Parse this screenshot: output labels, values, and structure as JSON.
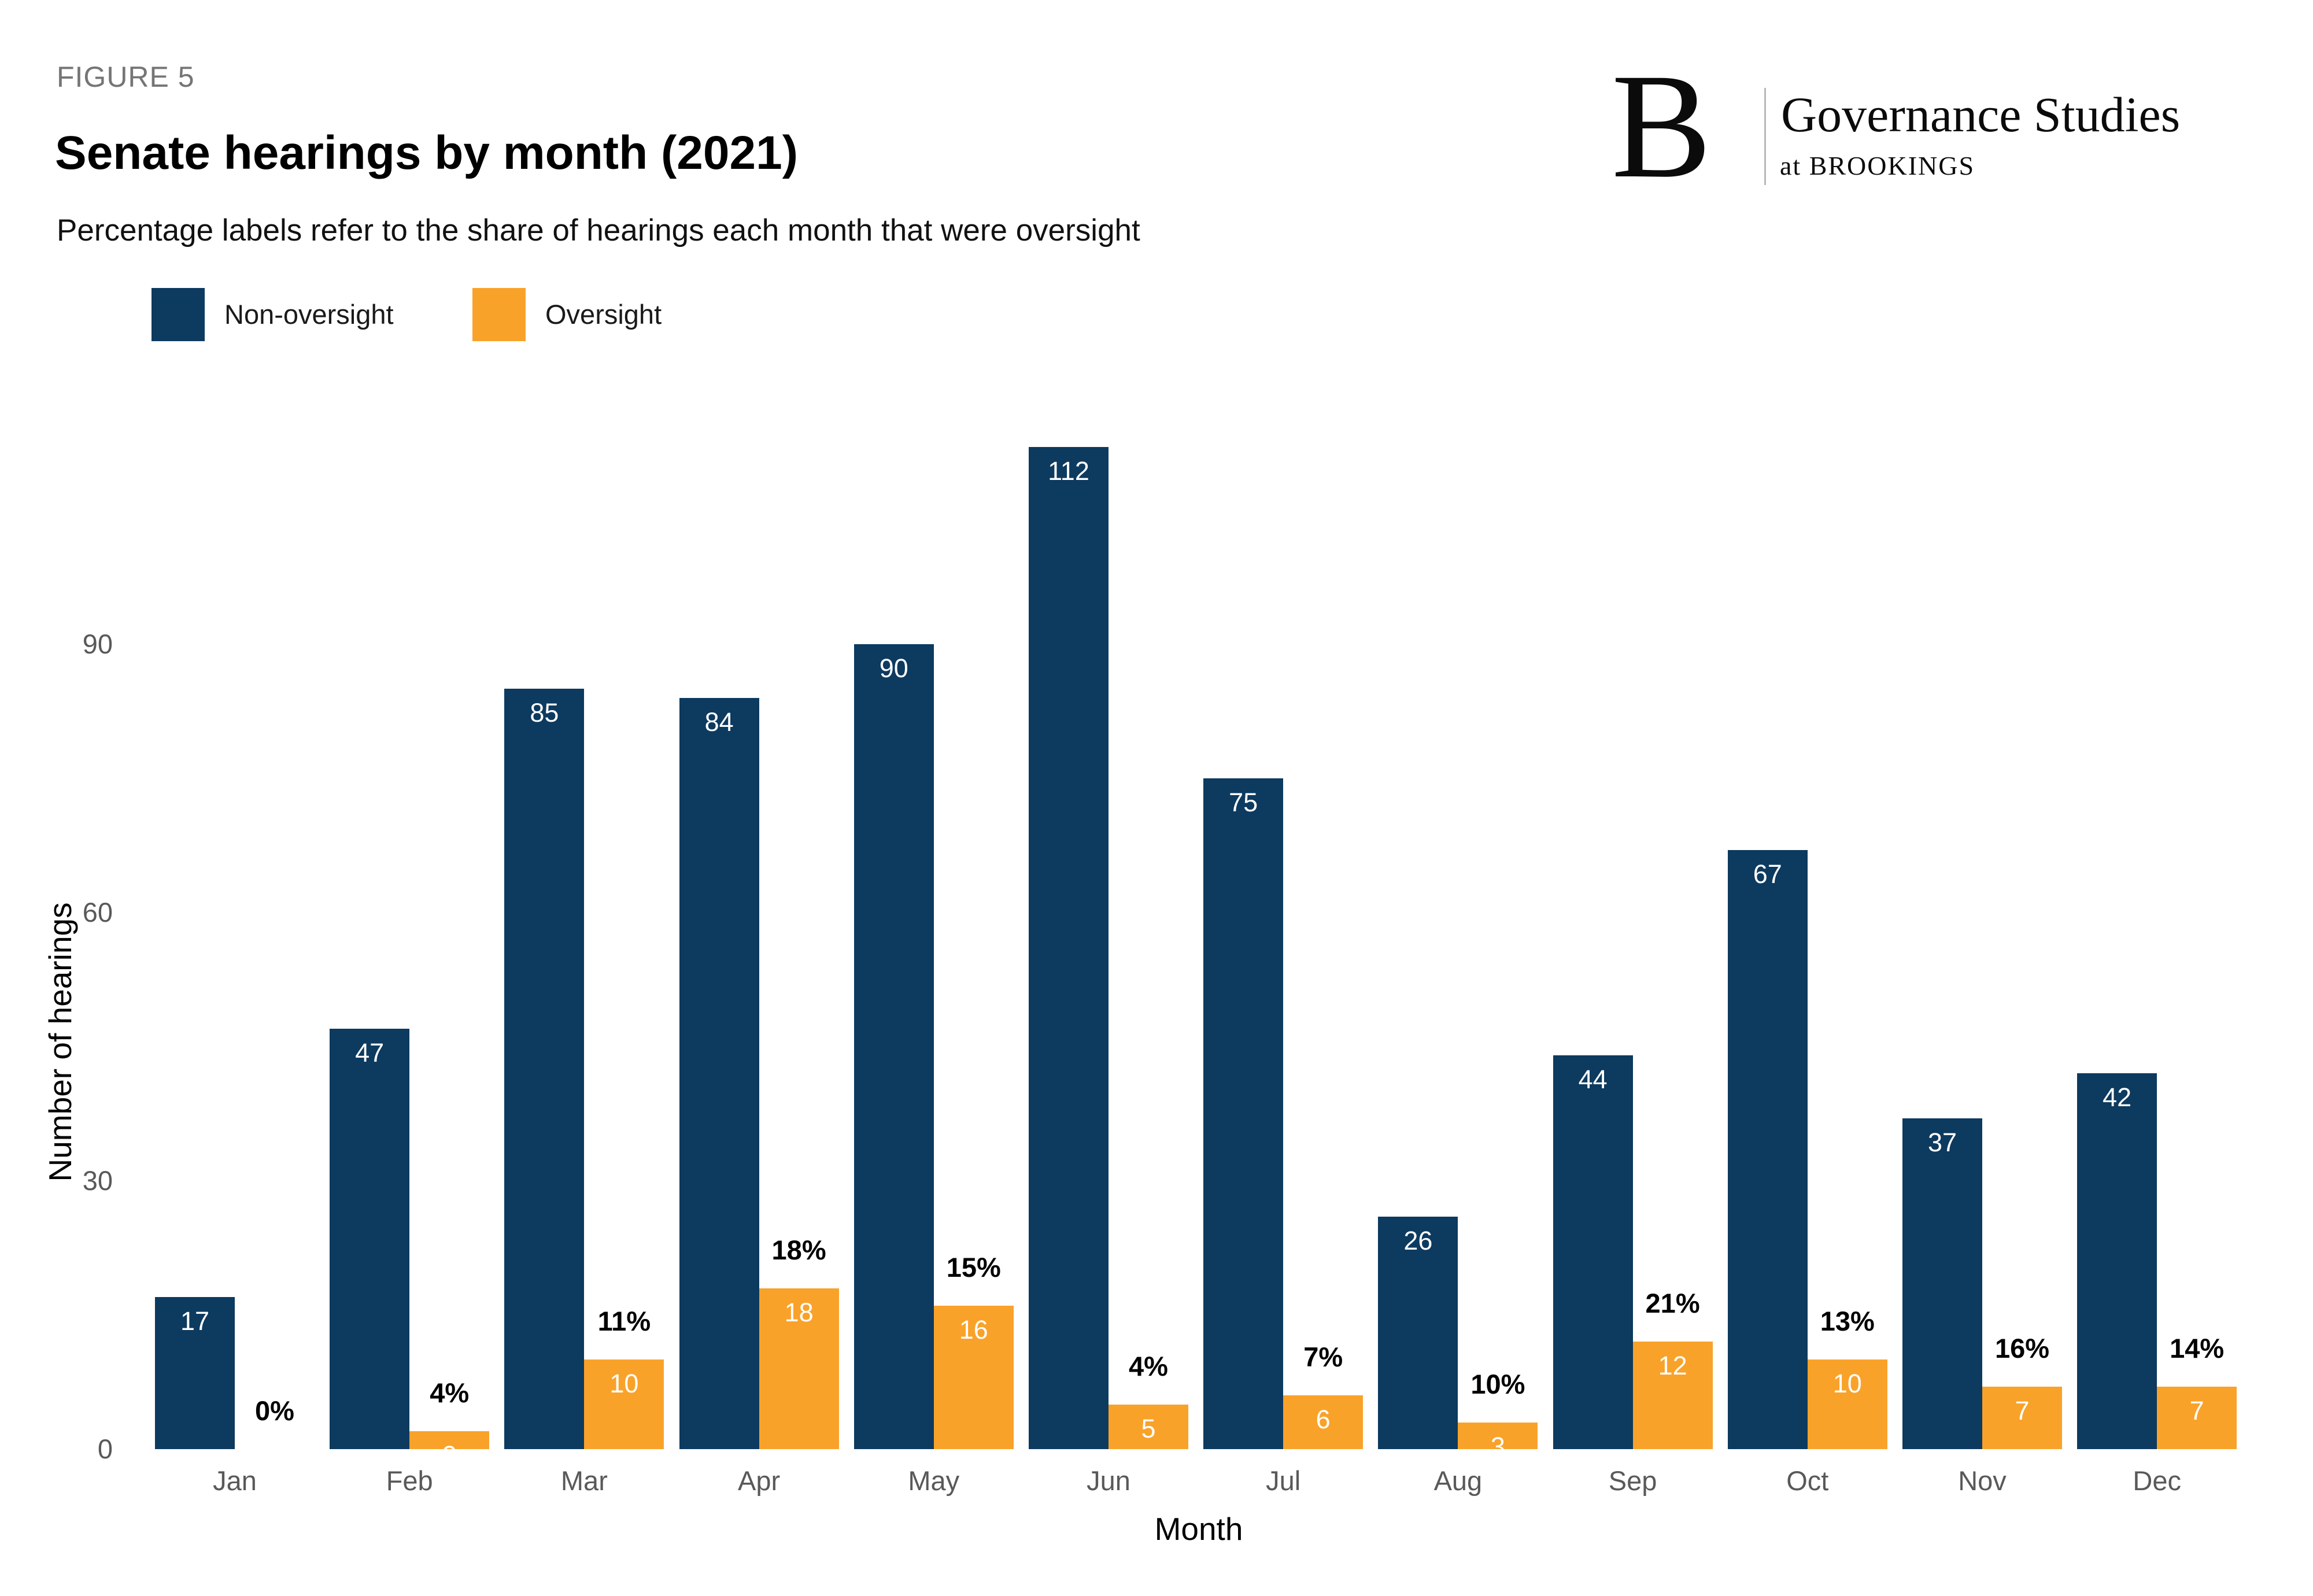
{
  "figure_label": "FIGURE 5",
  "title": "Senate hearings by month (2021)",
  "subtitle": "Percentage labels refer to the share of hearings each month that were oversight",
  "logo": {
    "letter": "B",
    "name": "Governance Studies",
    "subname": "at BROOKINGS"
  },
  "legend": [
    {
      "label": "Non-oversight",
      "color": "#0d3a5f"
    },
    {
      "label": "Oversight",
      "color": "#f9a22a"
    }
  ],
  "colors": {
    "non_oversight": "#0d3a5f",
    "oversight": "#f9a22a",
    "tick_text": "#595959",
    "bar_value_text": "#ffffff",
    "percent_text": "#000000"
  },
  "axes": {
    "x_label": "Month",
    "y_label": "Number of hearings",
    "y_ticks": [
      0,
      30,
      60,
      90
    ]
  },
  "chart_data": {
    "type": "bar",
    "title": "Senate hearings by month (2021)",
    "xlabel": "Month",
    "ylabel": "Number of hearings",
    "ylim": [
      0,
      115
    ],
    "grid": false,
    "legend_position": "top-left",
    "categories": [
      "Jan",
      "Feb",
      "Mar",
      "Apr",
      "May",
      "Jun",
      "Jul",
      "Aug",
      "Sep",
      "Oct",
      "Nov",
      "Dec"
    ],
    "series": [
      {
        "name": "Non-oversight",
        "color": "#0d3a5f",
        "values": [
          17,
          47,
          85,
          84,
          90,
          112,
          75,
          26,
          44,
          67,
          37,
          42
        ]
      },
      {
        "name": "Oversight",
        "color": "#f9a22a",
        "values": [
          0,
          2,
          10,
          18,
          16,
          5,
          6,
          3,
          12,
          10,
          7,
          7
        ]
      }
    ],
    "percent_labels": [
      "0%",
      "4%",
      "11%",
      "18%",
      "15%",
      "4%",
      "7%",
      "10%",
      "21%",
      "13%",
      "16%",
      "14%"
    ]
  }
}
